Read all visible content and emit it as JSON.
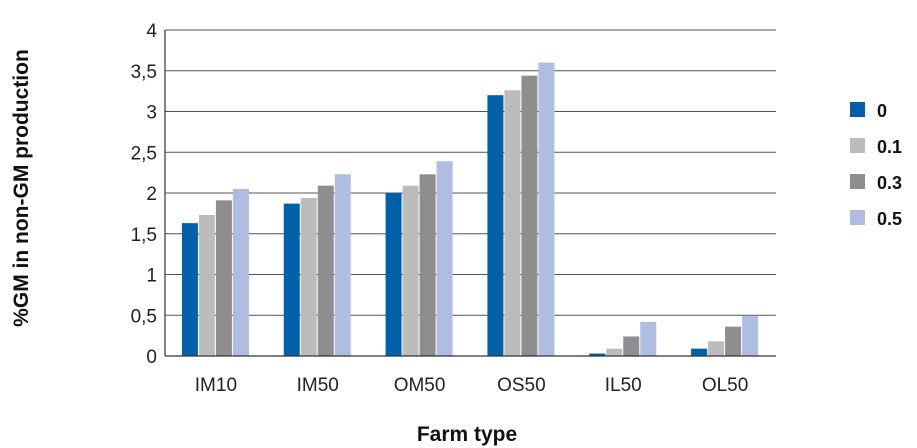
{
  "chart_data": {
    "type": "bar",
    "title": "",
    "xlabel": "Farm type",
    "ylabel": "%GM in non-GM production",
    "ylim": [
      0,
      4
    ],
    "yticks": [
      "0",
      "0,5",
      "1",
      "1,5",
      "2",
      "2,5",
      "3",
      "3,5",
      "4"
    ],
    "yticks_values": [
      0,
      0.5,
      1,
      1.5,
      2,
      2.5,
      3,
      3.5,
      4
    ],
    "grid": true,
    "legend_position": "right",
    "categories": [
      "IM10",
      "IM50",
      "OM50",
      "OS50",
      "IL50",
      "OL50"
    ],
    "series": [
      {
        "name": "0",
        "color": "#0060a8",
        "values": [
          1.63,
          1.87,
          2.0,
          3.2,
          0.03,
          0.09
        ]
      },
      {
        "name": "0.1",
        "color": "#bcbcbc",
        "values": [
          1.73,
          1.94,
          2.09,
          3.26,
          0.09,
          0.18
        ]
      },
      {
        "name": "0.3",
        "color": "#8e8e8e",
        "values": [
          1.91,
          2.09,
          2.23,
          3.44,
          0.24,
          0.36
        ]
      },
      {
        "name": "0.5",
        "color": "#aebde0",
        "values": [
          2.05,
          2.23,
          2.39,
          3.6,
          0.42,
          0.49
        ]
      }
    ]
  }
}
